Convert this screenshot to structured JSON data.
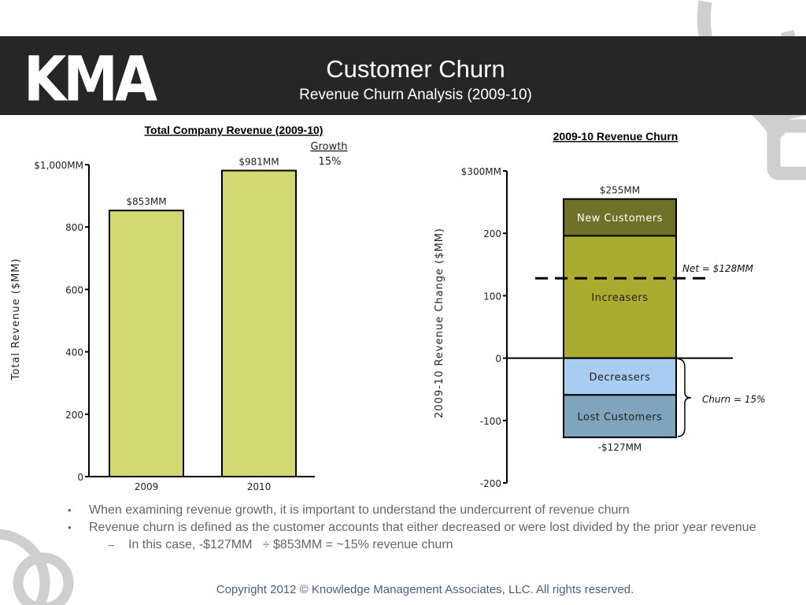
{
  "header": {
    "logo_text": "KMA",
    "title": "Customer Churn",
    "subtitle": "Revenue Churn Analysis (2009-10)"
  },
  "colors": {
    "header_bg": "#262626",
    "bar_fill": "#d4d873",
    "new_customers": "#707028",
    "increasers": "#a8ab2e",
    "decreasers": "#a8cdf0",
    "lost_customers": "#7fa4bd",
    "decoration": "#cfcfcf"
  },
  "chart_data": [
    {
      "type": "bar",
      "title": "Total Company Revenue (2009-10)",
      "xlabel": "",
      "ylabel": "Total Revenue ($MM)",
      "categories": [
        "2009",
        "2010"
      ],
      "values": [
        853,
        981
      ],
      "data_labels": [
        "$853MM",
        "$981MM"
      ],
      "ylim": [
        0,
        1000
      ],
      "yticks": [
        0,
        200,
        400,
        600,
        800,
        1000
      ],
      "ytick_labels": [
        "0",
        "200",
        "400",
        "600",
        "800",
        "$1,000MM"
      ],
      "growth_header": "Growth",
      "growth_value": "15%"
    },
    {
      "type": "bar",
      "stacked": true,
      "title": "2009-10 Revenue Churn",
      "ylabel": "2009-10 Revenue Change ($MM)",
      "ylim": [
        -200,
        300
      ],
      "yticks": [
        -200,
        -100,
        0,
        100,
        200,
        300
      ],
      "ytick_labels": [
        "-200",
        "-100",
        "0",
        "100",
        "200",
        "$300MM"
      ],
      "segments": [
        {
          "name": "New Customers",
          "from": 196,
          "to": 255
        },
        {
          "name": "Increasers",
          "from": 0,
          "to": 196
        },
        {
          "name": "Decreasers",
          "from": -59,
          "to": 0
        },
        {
          "name": "Lost Customers",
          "from": -127,
          "to": -59
        }
      ],
      "top_label": "$255MM",
      "bottom_label": "-$127MM",
      "net_value": 128,
      "net_label": "Net = $128MM",
      "churn_label": "Churn = 15%"
    }
  ],
  "bullets": [
    {
      "marker": "•",
      "text": "When examining revenue growth, it is important to understand the undercurrent of revenue churn",
      "sub": false
    },
    {
      "marker": "•",
      "text": "Revenue churn is defined as the customer accounts that either decreased or were lost divided by the prior year revenue",
      "sub": false
    },
    {
      "marker": "–",
      "text": "In this case, -$127MM   ÷ $853MM = ~15% revenue churn",
      "sub": true
    }
  ],
  "footer": "Copyright 2012 © Knowledge Management Associates, LLC.  All rights reserved."
}
